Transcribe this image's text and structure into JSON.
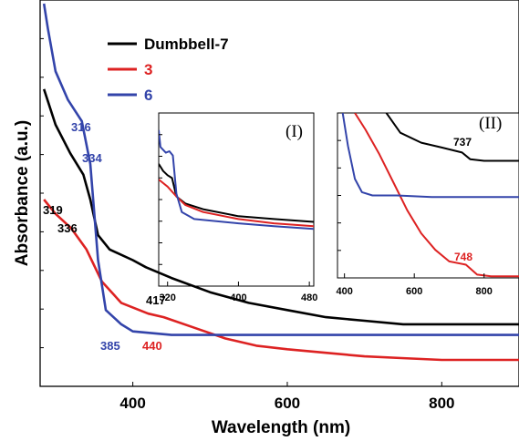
{
  "colors": {
    "dumbbell": "#000000",
    "c3": "#dd2222",
    "c6": "#3344aa"
  },
  "chart_data": [
    {
      "type": "line",
      "xlabel": "Wavelength (nm)",
      "ylabel": "Absorbance (a.u.)",
      "xlim": [
        280,
        900
      ],
      "xticks": [
        "400",
        "600",
        "800"
      ],
      "legend_position": "top-left",
      "series": [
        {
          "name": "Dumbbell-7",
          "color": "#000000",
          "x": [
            285,
            300,
            319,
            336,
            345,
            355,
            370,
            400,
            417,
            450,
            500,
            550,
            600,
            650,
            700,
            750,
            800,
            900
          ],
          "y": [
            0.76,
            0.66,
            0.58,
            0.52,
            0.45,
            0.35,
            0.31,
            0.28,
            0.26,
            0.23,
            0.19,
            0.16,
            0.14,
            0.12,
            0.11,
            0.1,
            0.1,
            0.1
          ]
        },
        {
          "name": "3",
          "color": "#dd2222",
          "x": [
            285,
            300,
            320,
            340,
            360,
            385,
            420,
            440,
            480,
            520,
            560,
            600,
            650,
            700,
            748,
            800,
            900
          ],
          "y": [
            0.45,
            0.41,
            0.37,
            0.31,
            0.22,
            0.16,
            0.13,
            0.12,
            0.09,
            0.06,
            0.04,
            0.03,
            0.02,
            0.01,
            0.005,
            0.0,
            0.0
          ]
        },
        {
          "name": "6",
          "color": "#3344aa",
          "x": [
            285,
            290,
            300,
            316,
            325,
            334,
            345,
            355,
            365,
            385,
            400,
            450,
            500,
            900
          ],
          "y": [
            1.0,
            0.93,
            0.81,
            0.73,
            0.7,
            0.67,
            0.55,
            0.28,
            0.14,
            0.1,
            0.08,
            0.07,
            0.07,
            0.07
          ]
        }
      ],
      "annotations": [
        {
          "text": "316",
          "series": "6"
        },
        {
          "text": "334",
          "series": "6"
        },
        {
          "text": "385",
          "series": "6"
        },
        {
          "text": "319",
          "series": "Dumbbell-7"
        },
        {
          "text": "336",
          "series": "Dumbbell-7"
        },
        {
          "text": "417",
          "series": "Dumbbell-7"
        },
        {
          "text": "440",
          "series": "3"
        }
      ]
    },
    {
      "type": "line",
      "inset_label": "(I)",
      "xlim": [
        310,
        485
      ],
      "xticks": [
        "320",
        "400",
        "480"
      ],
      "series": [
        {
          "name": "Dumbbell-7",
          "x": [
            310,
            315,
            320,
            325,
            330,
            340,
            360,
            400,
            440,
            485
          ],
          "y": [
            0.71,
            0.66,
            0.63,
            0.61,
            0.48,
            0.43,
            0.39,
            0.34,
            0.32,
            0.3
          ]
        },
        {
          "name": "3",
          "x": [
            310,
            320,
            330,
            340,
            360,
            400,
            440,
            485
          ],
          "y": [
            0.6,
            0.55,
            0.48,
            0.42,
            0.37,
            0.32,
            0.29,
            0.27
          ]
        },
        {
          "name": "6",
          "x": [
            310,
            312,
            318,
            322,
            326,
            330,
            336,
            350,
            400,
            440,
            485
          ],
          "y": [
            0.95,
            0.83,
            0.79,
            0.8,
            0.77,
            0.5,
            0.37,
            0.32,
            0.29,
            0.27,
            0.25
          ]
        }
      ]
    },
    {
      "type": "line",
      "inset_label": "(II)",
      "xlim": [
        380,
        900
      ],
      "xticks": [
        "400",
        "600",
        "800"
      ],
      "series": [
        {
          "name": "Dumbbell-7",
          "x": [
            520,
            560,
            620,
            680,
            737,
            760,
            800,
            900
          ],
          "y": [
            1.0,
            0.88,
            0.82,
            0.79,
            0.76,
            0.72,
            0.71,
            0.71
          ]
        },
        {
          "name": "3",
          "x": [
            430,
            460,
            500,
            540,
            580,
            620,
            660,
            700,
            748,
            780,
            820,
            900
          ],
          "y": [
            1.0,
            0.9,
            0.75,
            0.58,
            0.41,
            0.27,
            0.17,
            0.1,
            0.08,
            0.02,
            0.01,
            0.01
          ]
        },
        {
          "name": "6",
          "x": [
            395,
            410,
            430,
            450,
            480,
            550,
            650,
            750,
            900
          ],
          "y": [
            1.0,
            0.8,
            0.6,
            0.52,
            0.5,
            0.5,
            0.49,
            0.49,
            0.49
          ]
        }
      ],
      "annotations": [
        {
          "text": "737",
          "series": "Dumbbell-7"
        },
        {
          "text": "748",
          "series": "3"
        }
      ]
    }
  ]
}
